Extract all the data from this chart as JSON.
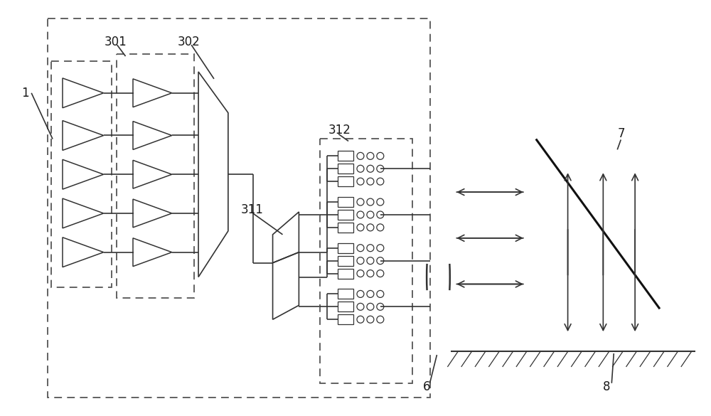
{
  "bg_color": "#ffffff",
  "line_color": "#333333",
  "line_color2": "#1a1a1a",
  "figure_size": [
    10.0,
    5.85
  ],
  "dpi": 100
}
